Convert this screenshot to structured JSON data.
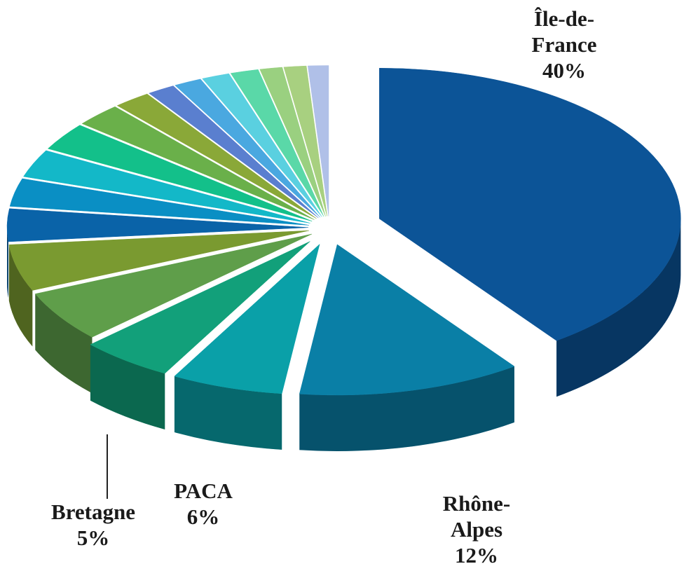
{
  "chart_data": {
    "type": "pie",
    "categories": [
      "Île-de-France",
      "Rhône-Alpes",
      "PACA",
      "Bretagne",
      null,
      null,
      null,
      null,
      null,
      null,
      null,
      null,
      null,
      null,
      null,
      null,
      null,
      null,
      null
    ],
    "values": [
      40,
      12,
      6,
      5,
      5.5,
      5,
      3.5,
      3,
      3,
      3,
      2.5,
      2,
      1.5,
      1.5,
      1.5,
      1.5,
      1.2,
      1.2,
      1.1
    ],
    "value_labels": [
      "40%",
      "12%",
      "6%",
      "5%",
      null,
      null,
      null,
      null,
      null,
      null,
      null,
      null,
      null,
      null,
      null,
      null,
      null,
      null,
      null
    ],
    "colors": [
      "#0c5497",
      "#0a7fa6",
      "#0aa0a8",
      "#12a07a",
      "#5f9e4a",
      "#7a9a30",
      "#0a63a8",
      "#0a8fc4",
      "#13b8c8",
      "#13c08a",
      "#6ab04a",
      "#8aa838",
      "#5a7fcf",
      "#4aa8e0",
      "#5ad0e0",
      "#5ad8a8",
      "#9ad080",
      "#a8d080",
      "#b0c0e8"
    ]
  }
}
